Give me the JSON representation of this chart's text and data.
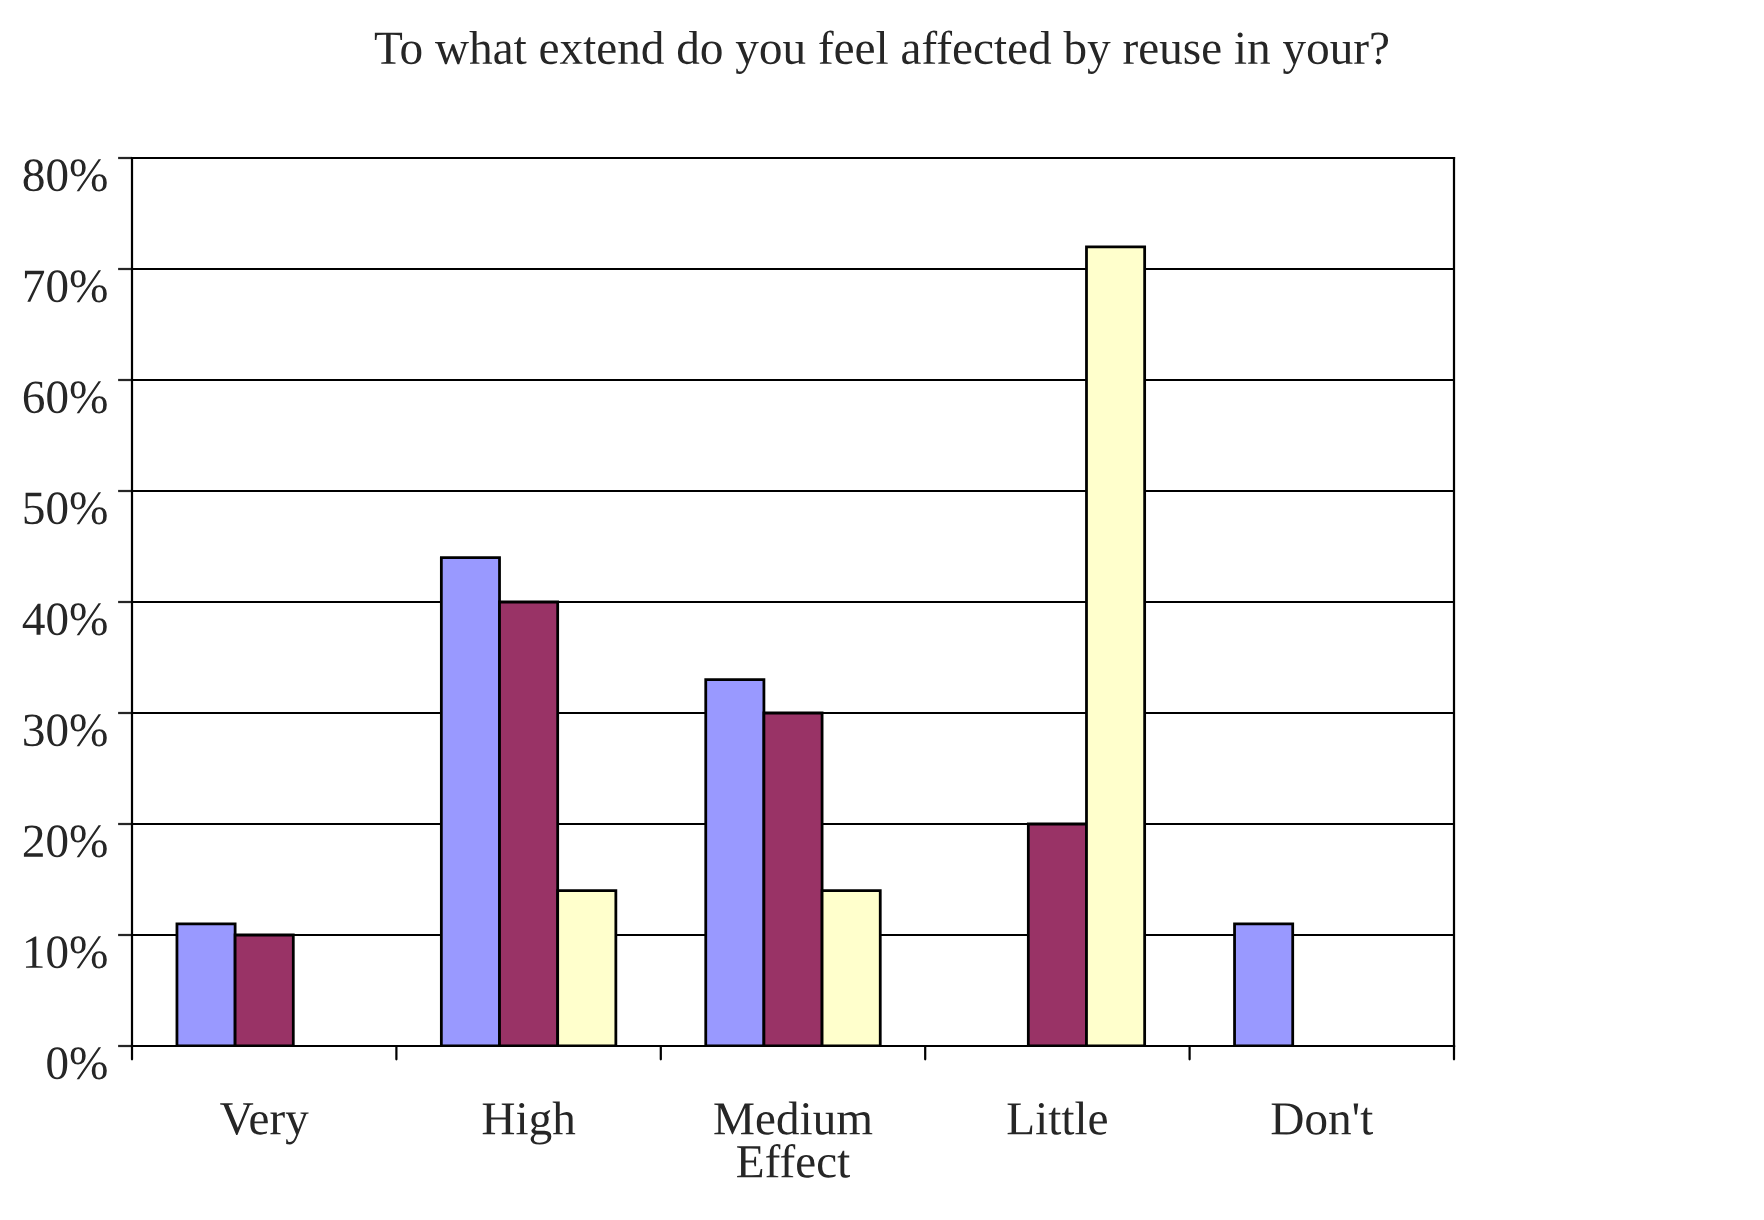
{
  "chart_data": {
    "type": "bar",
    "title": "To what extend do you feel affected by reuse in your?",
    "xlabel": "Effect",
    "categories": [
      "Very",
      "High",
      "Medium",
      "Little",
      "Don't"
    ],
    "series": [
      {
        "color": "#9999ff",
        "values": [
          11,
          44,
          33,
          null,
          11
        ]
      },
      {
        "color": "#993366",
        "values": [
          10,
          40,
          30,
          20,
          null
        ]
      },
      {
        "color": "#ffffcc",
        "values": [
          null,
          14,
          14,
          72,
          null
        ]
      }
    ],
    "ylim": [
      0,
      80
    ],
    "yticks": [
      {
        "value": 0,
        "label": "0%"
      },
      {
        "value": 10,
        "label": "10%"
      },
      {
        "value": 20,
        "label": "20%"
      },
      {
        "value": 30,
        "label": "30%"
      },
      {
        "value": 40,
        "label": "40%"
      },
      {
        "value": 50,
        "label": "50%"
      },
      {
        "value": 60,
        "label": "60%"
      },
      {
        "value": 70,
        "label": "70%"
      },
      {
        "value": 80,
        "label": "80%"
      }
    ],
    "grid": "y"
  }
}
